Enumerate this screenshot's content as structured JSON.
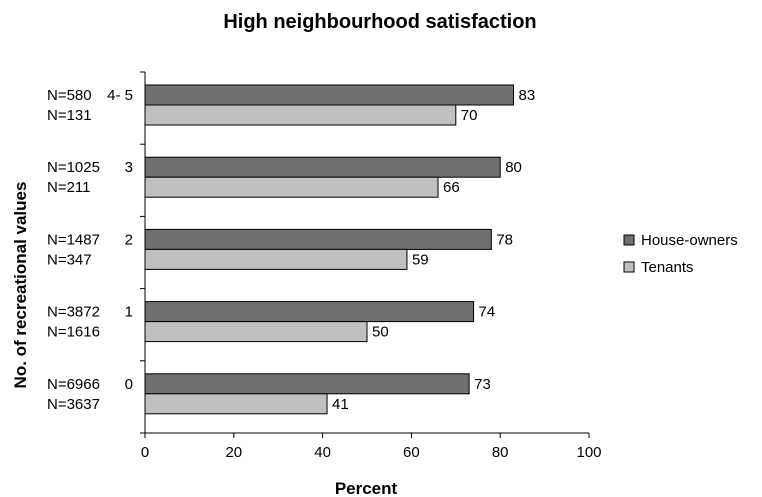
{
  "chart_data": {
    "type": "bar",
    "orientation": "horizontal",
    "title": "High neighbourhood satisfaction",
    "xlabel": "Percent",
    "ylabel": "No. of recreational values",
    "xlim": [
      0,
      100
    ],
    "xticks": [
      "0",
      "20",
      "40",
      "60",
      "80",
      "100"
    ],
    "grid": false,
    "legend_position": "right",
    "categories": [
      "4- 5",
      "3",
      "2",
      "1",
      "0"
    ],
    "series": [
      {
        "name": "House-owners",
        "color": "#707070",
        "values": [
          83,
          80,
          78,
          74,
          73
        ],
        "n_labels": [
          "N=580",
          "N=1025",
          "N=1487",
          "N=3872",
          "N=6966"
        ]
      },
      {
        "name": "Tenants",
        "color": "#c0c0c0",
        "values": [
          70,
          66,
          59,
          50,
          41
        ],
        "n_labels": [
          "N=131",
          "N=211",
          "N=347",
          "N=1616",
          "N=3637"
        ]
      }
    ]
  }
}
